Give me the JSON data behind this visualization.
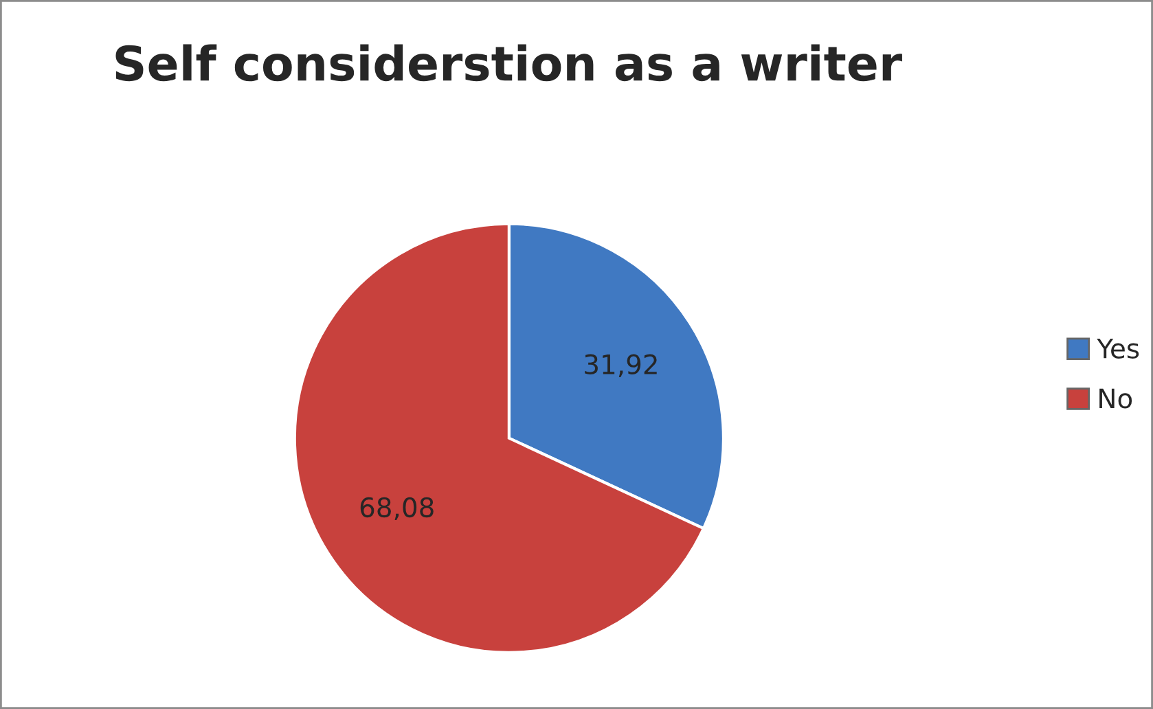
{
  "chart_data": {
    "type": "pie",
    "title": "Self considerstion as a writer",
    "categories": [
      "Yes",
      "No"
    ],
    "values": [
      31.92,
      68.08
    ],
    "value_labels": [
      "31,92",
      "68,08"
    ],
    "colors": [
      "#4079c2",
      "#c8413d"
    ],
    "legend": "right"
  }
}
